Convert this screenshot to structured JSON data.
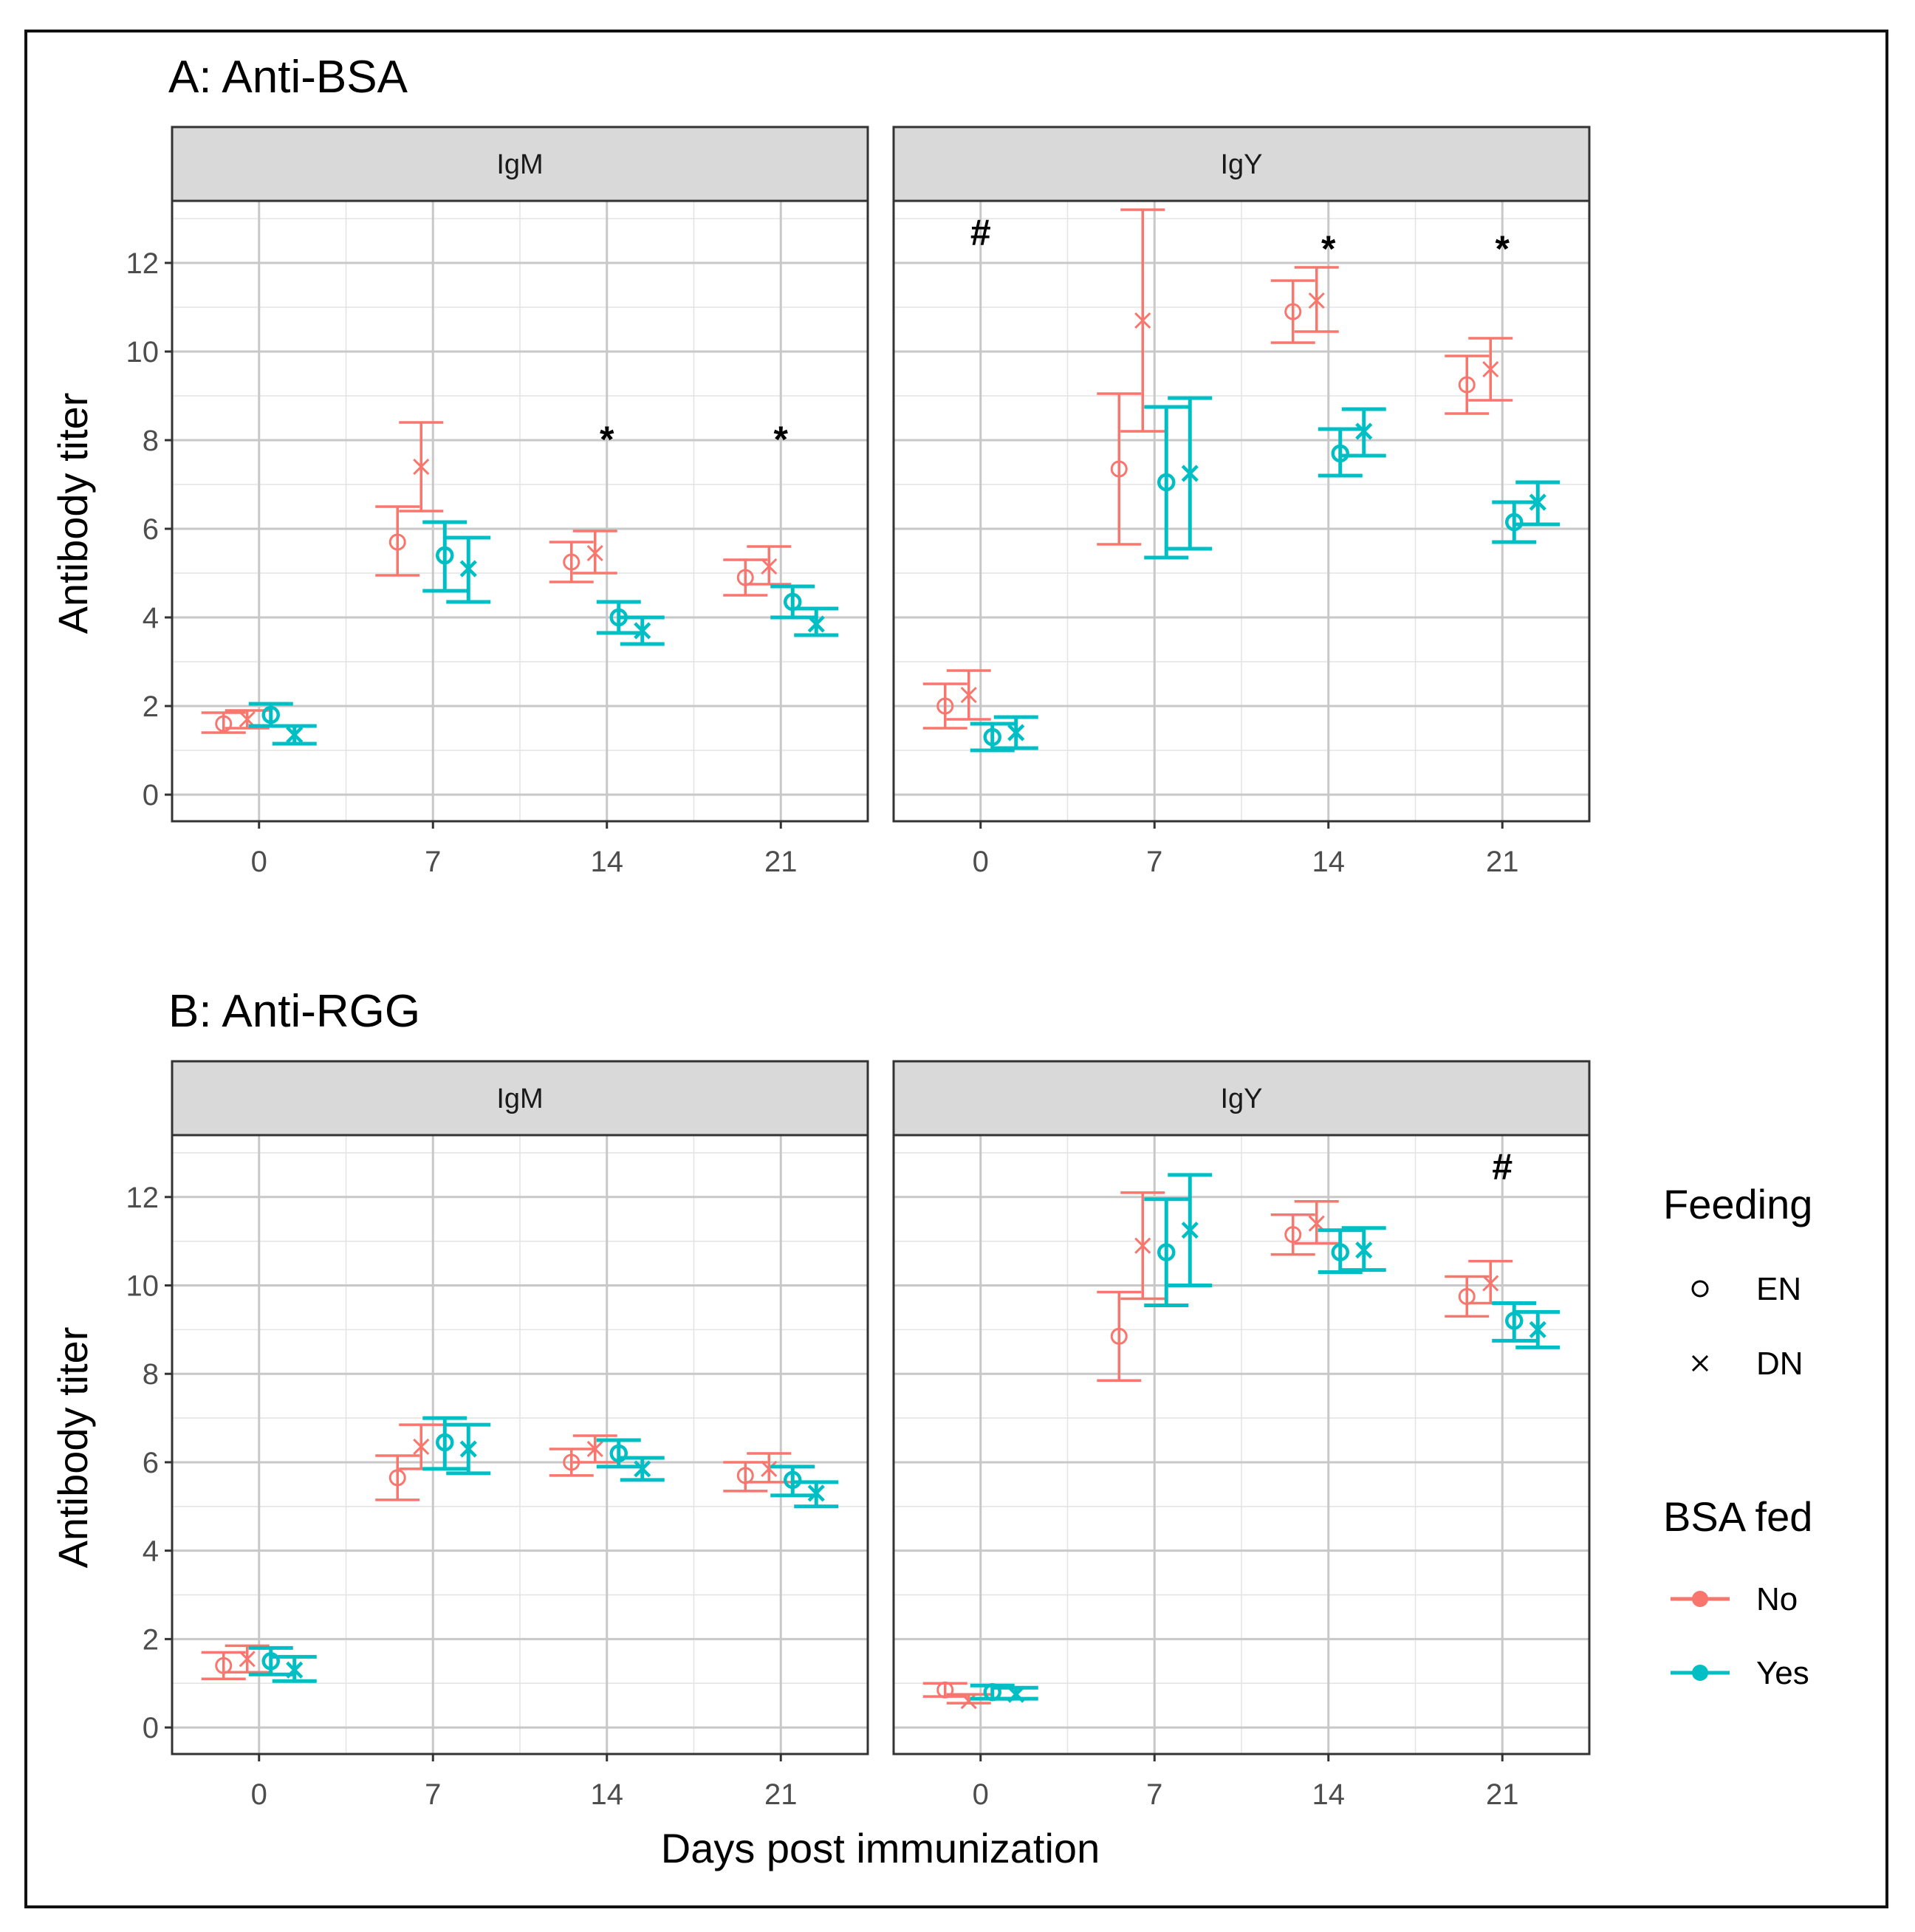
{
  "colors": {
    "No": "#F8766D",
    "Yes": "#00BFC4"
  },
  "chart_data": [
    {
      "type": "scatter",
      "title": "A: Anti-BSA",
      "xlabel": "Days post immunization",
      "ylabel": "Antibody titer",
      "ylim": [
        -0.6,
        13.4
      ],
      "y_ticks": [
        "0",
        "2",
        "4",
        "6",
        "8",
        "10",
        "12"
      ],
      "x_ticks": [
        "0",
        "7",
        "14",
        "21"
      ],
      "panels": [
        {
          "strip": "IgM",
          "series": [
            {
              "name": "No / EN",
              "bsa_fed": "No",
              "feeding": "EN",
              "x": [
                0,
                7,
                14,
                21
              ],
              "y": [
                1.6,
                5.7,
                5.25,
                4.9
              ],
              "ymin": [
                1.4,
                4.95,
                4.8,
                4.5
              ],
              "ymax": [
                1.85,
                6.5,
                5.7,
                5.3
              ]
            },
            {
              "name": "No / DN",
              "bsa_fed": "No",
              "feeding": "DN",
              "x": [
                0,
                7,
                14,
                21
              ],
              "y": [
                1.7,
                7.4,
                5.45,
                5.15
              ],
              "ymin": [
                1.5,
                6.4,
                5.0,
                4.75
              ],
              "ymax": [
                1.9,
                8.4,
                5.95,
                5.6
              ]
            },
            {
              "name": "Yes / EN",
              "bsa_fed": "Yes",
              "feeding": "EN",
              "x": [
                0,
                7,
                14,
                21
              ],
              "y": [
                1.8,
                5.4,
                4.0,
                4.35
              ],
              "ymin": [
                1.55,
                4.6,
                3.65,
                4.0
              ],
              "ymax": [
                2.05,
                6.15,
                4.35,
                4.7
              ]
            },
            {
              "name": "Yes / DN",
              "bsa_fed": "Yes",
              "feeding": "DN",
              "x": [
                0,
                7,
                14,
                21
              ],
              "y": [
                1.35,
                5.1,
                3.7,
                3.85
              ],
              "ymin": [
                1.15,
                4.35,
                3.4,
                3.6
              ],
              "ymax": [
                1.55,
                5.8,
                4.0,
                4.2
              ]
            }
          ],
          "annotations": [
            {
              "day": "14",
              "label": "*"
            },
            {
              "day": "21",
              "label": "*"
            }
          ]
        },
        {
          "strip": "IgY",
          "series": [
            {
              "name": "No / EN",
              "bsa_fed": "No",
              "feeding": "EN",
              "x": [
                0,
                7,
                14,
                21
              ],
              "y": [
                2.0,
                7.35,
                10.9,
                9.25
              ],
              "ymin": [
                1.5,
                5.65,
                10.2,
                8.6
              ],
              "ymax": [
                2.5,
                9.05,
                11.6,
                9.9
              ]
            },
            {
              "name": "No / DN",
              "bsa_fed": "No",
              "feeding": "DN",
              "x": [
                0,
                7,
                14,
                21
              ],
              "y": [
                2.25,
                10.7,
                11.15,
                9.6
              ],
              "ymin": [
                1.7,
                8.2,
                10.45,
                8.9
              ],
              "ymax": [
                2.8,
                13.2,
                11.9,
                10.3
              ]
            },
            {
              "name": "Yes / EN",
              "bsa_fed": "Yes",
              "feeding": "EN",
              "x": [
                0,
                7,
                14,
                21
              ],
              "y": [
                1.3,
                7.05,
                7.7,
                6.15
              ],
              "ymin": [
                1.0,
                5.35,
                7.2,
                5.7
              ],
              "ymax": [
                1.6,
                8.75,
                8.25,
                6.6
              ]
            },
            {
              "name": "Yes / DN",
              "bsa_fed": "Yes",
              "feeding": "DN",
              "x": [
                0,
                7,
                14,
                21
              ],
              "y": [
                1.4,
                7.25,
                8.2,
                6.6
              ],
              "ymin": [
                1.05,
                5.55,
                7.65,
                6.1
              ],
              "ymax": [
                1.75,
                8.95,
                8.7,
                7.05
              ]
            }
          ],
          "annotations": [
            {
              "day": "0",
              "label": "#"
            },
            {
              "day": "14",
              "label": "*"
            },
            {
              "day": "21",
              "label": "*"
            }
          ]
        }
      ]
    },
    {
      "type": "scatter",
      "title": "B: Anti-RGG",
      "xlabel": "Days post immunization",
      "ylabel": "Antibody titer",
      "ylim": [
        -0.6,
        13.4
      ],
      "y_ticks": [
        "0",
        "2",
        "4",
        "6",
        "8",
        "10",
        "12"
      ],
      "x_ticks": [
        "0",
        "7",
        "14",
        "21"
      ],
      "panels": [
        {
          "strip": "IgM",
          "series": [
            {
              "name": "No / EN",
              "bsa_fed": "No",
              "feeding": "EN",
              "x": [
                0,
                7,
                14,
                21
              ],
              "y": [
                1.4,
                5.65,
                6.0,
                5.7
              ],
              "ymin": [
                1.1,
                5.15,
                5.7,
                5.35
              ],
              "ymax": [
                1.7,
                6.15,
                6.3,
                6.0
              ]
            },
            {
              "name": "No / DN",
              "bsa_fed": "No",
              "feeding": "DN",
              "x": [
                0,
                7,
                14,
                21
              ],
              "y": [
                1.55,
                6.35,
                6.3,
                5.85
              ],
              "ymin": [
                1.25,
                5.85,
                6.0,
                5.55
              ],
              "ymax": [
                1.85,
                6.85,
                6.6,
                6.2
              ]
            },
            {
              "name": "Yes / EN",
              "bsa_fed": "Yes",
              "feeding": "EN",
              "x": [
                0,
                7,
                14,
                21
              ],
              "y": [
                1.5,
                6.45,
                6.2,
                5.6
              ],
              "ymin": [
                1.2,
                5.85,
                5.9,
                5.25
              ],
              "ymax": [
                1.8,
                7.0,
                6.5,
                5.9
              ]
            },
            {
              "name": "Yes / DN",
              "bsa_fed": "Yes",
              "feeding": "DN",
              "x": [
                0,
                7,
                14,
                21
              ],
              "y": [
                1.3,
                6.3,
                5.85,
                5.3
              ],
              "ymin": [
                1.05,
                5.75,
                5.6,
                5.0
              ],
              "ymax": [
                1.6,
                6.85,
                6.1,
                5.55
              ]
            }
          ],
          "annotations": []
        },
        {
          "strip": "IgY",
          "series": [
            {
              "name": "No / EN",
              "bsa_fed": "No",
              "feeding": "EN",
              "x": [
                0,
                7,
                14,
                21
              ],
              "y": [
                0.85,
                8.85,
                11.15,
                9.75
              ],
              "ymin": [
                0.7,
                7.85,
                10.7,
                9.3
              ],
              "ymax": [
                1.0,
                9.85,
                11.6,
                10.2
              ]
            },
            {
              "name": "No / DN",
              "bsa_fed": "No",
              "feeding": "DN",
              "x": [
                0,
                7,
                14,
                21
              ],
              "y": [
                0.6,
                10.9,
                11.4,
                10.05
              ],
              "ymin": [
                0.55,
                9.7,
                10.95,
                9.6
              ],
              "ymax": [
                0.75,
                12.1,
                11.9,
                10.55
              ]
            },
            {
              "name": "Yes / EN",
              "bsa_fed": "Yes",
              "feeding": "EN",
              "x": [
                0,
                7,
                14,
                21
              ],
              "y": [
                0.8,
                10.75,
                10.75,
                9.2
              ],
              "ymin": [
                0.65,
                9.55,
                10.3,
                8.75
              ],
              "ymax": [
                0.95,
                11.95,
                11.25,
                9.6
              ]
            },
            {
              "name": "Yes / DN",
              "bsa_fed": "Yes",
              "feeding": "DN",
              "x": [
                0,
                7,
                14,
                21
              ],
              "y": [
                0.75,
                11.25,
                10.8,
                9.0
              ],
              "ymin": [
                0.65,
                10.0,
                10.35,
                8.6
              ],
              "ymax": [
                0.9,
                12.5,
                11.3,
                9.4
              ]
            }
          ],
          "annotations": [
            {
              "day": "21",
              "label": "#"
            }
          ]
        }
      ]
    }
  ],
  "legend": {
    "feeding": {
      "title": "Feeding",
      "items": [
        {
          "label": "EN",
          "shape": "circle"
        },
        {
          "label": "DN",
          "shape": "cross"
        }
      ]
    },
    "bsa_fed": {
      "title": "BSA fed",
      "items": [
        {
          "label": "No",
          "color": "#F8766D"
        },
        {
          "label": "Yes",
          "color": "#00BFC4"
        }
      ]
    }
  }
}
